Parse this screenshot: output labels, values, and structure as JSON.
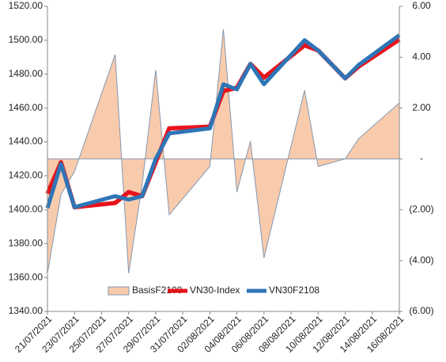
{
  "chart_data": {
    "type": "line",
    "x": [
      "21/07/2021",
      "22/07/2021",
      "23/07/2021",
      "26/07/2021",
      "27/07/2021",
      "28/07/2021",
      "29/07/2021",
      "30/07/2021",
      "02/08/2021",
      "03/08/2021",
      "04/08/2021",
      "05/08/2021",
      "06/08/2021",
      "09/08/2021",
      "10/08/2021",
      "12/08/2021",
      "13/08/2021",
      "16/08/2021"
    ],
    "series": [
      {
        "name": "BasisF2108",
        "kind": "area",
        "axis": "y2",
        "color": "#f8cbad",
        "line_color": "#8497b0",
        "values": [
          -4.5,
          -1.4,
          -0.5,
          4.1,
          -4.5,
          -1.0,
          3.5,
          -2.2,
          -0.3,
          5.1,
          -1.3,
          0.7,
          -3.9,
          2.7,
          -0.3,
          0,
          0.8,
          2.2
        ]
      },
      {
        "name": "VN30-Index",
        "kind": "line",
        "color": "#e8131b",
        "values": [
          1409.5,
          1428,
          1401.5,
          1404,
          1410.4,
          1408,
          1428,
          1448,
          1449,
          1470,
          1472,
          1486,
          1478,
          1497,
          1494,
          1477.5,
          1484.5,
          1500.4
        ]
      },
      {
        "name": "VN30F2108",
        "kind": "line",
        "color": "#2e75b6",
        "values": [
          1401,
          1427,
          1401.5,
          1408,
          1406,
          1408,
          1430,
          1445,
          1448,
          1474,
          1471,
          1486,
          1474,
          1500,
          1494,
          1477.5,
          1485.5,
          1503
        ]
      }
    ],
    "xlim": [
      "21/07/2021",
      "16/08/2021"
    ],
    "xticks": [
      "21/07/2021",
      "23/07/2021",
      "25/07/2021",
      "27/07/2021",
      "29/07/2021",
      "31/07/2021",
      "02/08/2021",
      "04/08/2021",
      "06/08/2021",
      "08/08/2021",
      "10/08/2021",
      "12/08/2021",
      "14/08/2021",
      "16/08/2021"
    ],
    "ylim": [
      1340,
      1520
    ],
    "yticks": [
      {
        "value": 1340,
        "label": "1340.00"
      },
      {
        "value": 1360,
        "label": "1360.00"
      },
      {
        "value": 1380,
        "label": "1380.00"
      },
      {
        "value": 1400,
        "label": "1400.00"
      },
      {
        "value": 1420,
        "label": "1420.00"
      },
      {
        "value": 1440,
        "label": "1440.00"
      },
      {
        "value": 1460,
        "label": "1460.00"
      },
      {
        "value": 1480,
        "label": "1480.00"
      },
      {
        "value": 1500,
        "label": "1500.00"
      },
      {
        "value": 1520,
        "label": "1520.00"
      }
    ],
    "y2lim": [
      -6,
      6
    ],
    "y2ticks": [
      {
        "value": -6,
        "label": "(6.00)"
      },
      {
        "value": -4,
        "label": "(4.00)"
      },
      {
        "value": -2,
        "label": "(2.00)"
      },
      {
        "value": 0,
        "label": "-"
      },
      {
        "value": 2,
        "label": "2.00"
      },
      {
        "value": 4,
        "label": "4.00"
      },
      {
        "value": 6,
        "label": "6.00"
      }
    ],
    "legend": "bottom-inside"
  }
}
